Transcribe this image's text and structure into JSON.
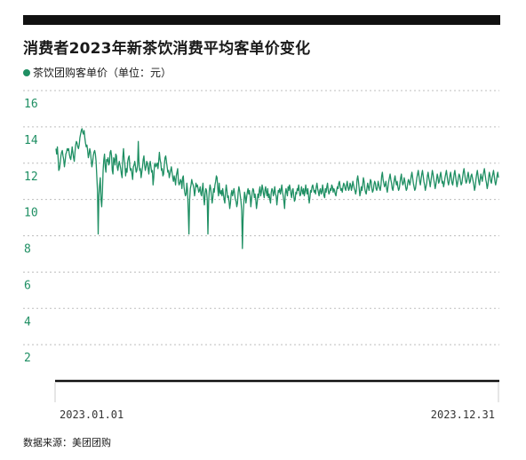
{
  "title": "消费者2023年新茶饮消费平均客单价变化",
  "source": "数据来源：美团团购",
  "colors": {
    "line": "#1f8f63",
    "grid": "#bdbdbd",
    "axis": "#111111",
    "topbar": "#111111"
  },
  "chart_data": {
    "type": "line",
    "title": "消费者2023年新茶饮消费平均客单价变化",
    "xlabel": "",
    "ylabel": "",
    "ylim": [
      0,
      16
    ],
    "yticks": [
      2,
      4,
      6,
      8,
      10,
      12,
      14,
      16
    ],
    "grid": true,
    "legend": "top-left",
    "x_start_label": "2023.01.01",
    "x_end_label": "2023.12.31",
    "series": [
      {
        "name": "茶饮团购客单价（单位：元）",
        "values": [
          12.8,
          12.5,
          12.9,
          12.3,
          11.6,
          11.7,
          12.0,
          12.4,
          12.6,
          12.7,
          12.4,
          12.2,
          11.8,
          12.1,
          12.5,
          12.6,
          12.8,
          12.7,
          12.8,
          12.5,
          12.3,
          12.2,
          12.5,
          12.9,
          12.6,
          12.3,
          12.1,
          12.6,
          13.0,
          13.2,
          13.1,
          12.9,
          12.8,
          13.0,
          13.4,
          13.6,
          13.8,
          13.9,
          13.7,
          13.6,
          13.8,
          13.4,
          13.1,
          12.9,
          13.0,
          12.7,
          12.3,
          12.5,
          12.8,
          12.6,
          12.2,
          11.8,
          12.0,
          12.4,
          12.6,
          12.7,
          12.5,
          12.1,
          11.3,
          10.5,
          8.1,
          10.2,
          10.8,
          11.2,
          10.0,
          9.6,
          10.4,
          11.6,
          12.2,
          12.5,
          11.8,
          11.5,
          12.2,
          12.1,
          12.3,
          11.9,
          12.0,
          12.6,
          12.7,
          12.4,
          11.6,
          11.4,
          12.3,
          12.2,
          11.9,
          12.5,
          12.4,
          11.8,
          11.6,
          11.9,
          12.1,
          11.9,
          11.7,
          11.4,
          11.2,
          12.3,
          12.8,
          12.2,
          11.9,
          11.3,
          11.7,
          11.5,
          12.1,
          12.3,
          12.4,
          11.8,
          11.6,
          11.7,
          11.4,
          11.1,
          11.8,
          11.9,
          12.1,
          11.8,
          11.5,
          11.6,
          11.9,
          13.2,
          12.0,
          11.6,
          11.7,
          11.2,
          11.5,
          11.8,
          12.2,
          12.4,
          11.9,
          11.6,
          11.8,
          12.1,
          12.0,
          11.7,
          11.4,
          11.9,
          12.1,
          11.8,
          11.5,
          11.6,
          10.8,
          11.2,
          11.9,
          12.0,
          11.8,
          11.9,
          12.0,
          11.7,
          12.1,
          12.6,
          12.2,
          12.0,
          11.6,
          11.7,
          11.3,
          11.4,
          11.9,
          12.3,
          12.4,
          12.1,
          11.8,
          11.5,
          11.6,
          11.2,
          11.4,
          11.6,
          11.8,
          11.5,
          11.2,
          11.0,
          11.3,
          11.1,
          10.8,
          11.3,
          11.5,
          11.7,
          11.0,
          10.8,
          10.9,
          11.1,
          11.0,
          10.6,
          11.2,
          11.3,
          10.7,
          10.4,
          10.2,
          10.3,
          10.9,
          10.5,
          9.4,
          8.1,
          10.0,
          10.6,
          10.8,
          11.1,
          10.9,
          10.8,
          10.6,
          10.2,
          10.5,
          10.9,
          10.7,
          10.8,
          10.6,
          10.4,
          10.5,
          10.7,
          10.3,
          10.2,
          10.6,
          10.9,
          10.1,
          9.7,
          10.3,
          10.6,
          10.5,
          10.0,
          8.1,
          9.9,
          10.5,
          10.8,
          10.6,
          10.2,
          9.8,
          10.1,
          10.6,
          10.4,
          10.8,
          11.0,
          11.3,
          11.2,
          10.6,
          10.2,
          10.9,
          10.4,
          10.3,
          10.5,
          10.2,
          10.6,
          10.3,
          10.0,
          9.8,
          10.4,
          10.8,
          10.5,
          10.1,
          10.2,
          9.9,
          9.5,
          9.8,
          10.3,
          10.5,
          10.2,
          10.4,
          10.6,
          10.3,
          10.0,
          9.9,
          9.6,
          9.8,
          10.4,
          10.7,
          10.5,
          10.2,
          9.9,
          9.4,
          7.3,
          9.0,
          9.8,
          10.4,
          10.2,
          9.8,
          10.1,
          10.4,
          10.6,
          10.3,
          10.5,
          10.2,
          9.6,
          10.0,
          10.4,
          10.6,
          10.5,
          10.1,
          10.3,
          10.0,
          9.5,
          9.8,
          10.3,
          10.1,
          10.5,
          10.7,
          10.2,
          10.4,
          10.8,
          10.6,
          10.3,
          10.1,
          10.5,
          10.7,
          10.4,
          10.2,
          10.6,
          10.1,
          10.3,
          10.0,
          9.8,
          10.4,
          10.6,
          10.5,
          10.2,
          10.4,
          10.7,
          10.3,
          10.2,
          9.7,
          10.1,
          10.5,
          10.4,
          10.6,
          10.3,
          10.5,
          10.8,
          10.4,
          10.2,
          9.9,
          9.5,
          10.3,
          10.6,
          10.4,
          10.2,
          10.7,
          10.5,
          10.8,
          10.6,
          10.3,
          10.1,
          10.5,
          10.6,
          10.2,
          9.9,
          10.0,
          10.4,
          10.3,
          10.6,
          10.5,
          10.8,
          10.4,
          10.2,
          10.3,
          10.7,
          10.5,
          10.3,
          10.6,
          10.2,
          10.4,
          10.8,
          10.5,
          10.3,
          10.6,
          10.2,
          9.8,
          10.1,
          10.5,
          10.4,
          10.7,
          10.8,
          10.6,
          10.4,
          10.5,
          10.3,
          10.7,
          10.9,
          10.6,
          10.4,
          10.2,
          10.5,
          10.6,
          10.3,
          10.4,
          10.8,
          10.5,
          10.2,
          10.1,
          10.6,
          10.4,
          10.7,
          10.9,
          10.5,
          10.3,
          10.4,
          10.6,
          10.5,
          10.8,
          10.7,
          10.4,
          10.6,
          10.5,
          10.3,
          10.2,
          10.5,
          10.7,
          10.6,
          10.9,
          11.0,
          10.7,
          10.5,
          10.6,
          10.4,
          10.7,
          10.9,
          10.8,
          10.6,
          10.5,
          10.8,
          11.0,
          10.7,
          10.5,
          10.6,
          10.9,
          10.8,
          10.5,
          10.7,
          11.0,
          10.8,
          10.6,
          10.5,
          10.3,
          10.5,
          11.1,
          11.3,
          11.0,
          10.6,
          10.2,
          10.4,
          10.7,
          10.5,
          10.8,
          11.2,
          11.0,
          10.6,
          10.4,
          10.3,
          10.6,
          10.9,
          10.7,
          10.5,
          10.8,
          11.1,
          11.0,
          10.6,
          10.4,
          10.5,
          10.8,
          11.0,
          10.9,
          10.6,
          10.5,
          10.7,
          11.0,
          10.8,
          10.6,
          10.5,
          10.8,
          11.3,
          11.5,
          11.1,
          10.9,
          10.7,
          10.8,
          11.0,
          10.6,
          10.4,
          10.7,
          11.0,
          11.2,
          11.4,
          11.1,
          10.9,
          10.6,
          10.5,
          10.8,
          11.1,
          11.3,
          11.0,
          10.8,
          11.0,
          10.7,
          10.5,
          10.6,
          10.9,
          11.2,
          11.4,
          11.0,
          10.8,
          10.9,
          11.2,
          11.0,
          10.7,
          10.5,
          10.6,
          10.9,
          11.1,
          11.0,
          10.8,
          11.0,
          11.3,
          11.5,
          11.2,
          10.9,
          10.7,
          10.5,
          10.6,
          10.9,
          11.2,
          11.4,
          11.6,
          11.3,
          11.0,
          10.8,
          11.1,
          11.4,
          11.6,
          11.3,
          11.0,
          10.8,
          10.5,
          10.7,
          10.9,
          11.3,
          11.5,
          11.2,
          11.0,
          10.7,
          11.0,
          11.3,
          11.6,
          11.4,
          11.1,
          10.9,
          10.6,
          10.8,
          11.1,
          11.4,
          11.2,
          10.9,
          11.0,
          11.3,
          11.5,
          11.2,
          10.9,
          11.0,
          10.7,
          10.9,
          11.2,
          11.4,
          11.6,
          11.3,
          11.0,
          10.8,
          11.0,
          11.3,
          11.5,
          11.2,
          10.9,
          10.8,
          11.1,
          11.4,
          11.6,
          11.3,
          11.0,
          10.7,
          10.9,
          11.2,
          11.4,
          11.3,
          11.0,
          10.8,
          10.9,
          11.2,
          11.5,
          11.7,
          11.4,
          11.1,
          10.9,
          11.0,
          11.3,
          11.5,
          11.2,
          10.9,
          11.0,
          11.3,
          11.4,
          11.2,
          11.0,
          10.8,
          10.5,
          10.7,
          11.1,
          11.4,
          11.6,
          11.3,
          11.0,
          10.8,
          11.1,
          11.4,
          11.2,
          11.0,
          11.3,
          11.5,
          11.7,
          11.4,
          11.1,
          10.9,
          10.6,
          10.8,
          11.2,
          11.5,
          11.3,
          11.0,
          10.9,
          11.2,
          11.4,
          11.6,
          11.3,
          11.0,
          10.8,
          11.0,
          11.3,
          11.5,
          11.2
        ]
      }
    ]
  }
}
